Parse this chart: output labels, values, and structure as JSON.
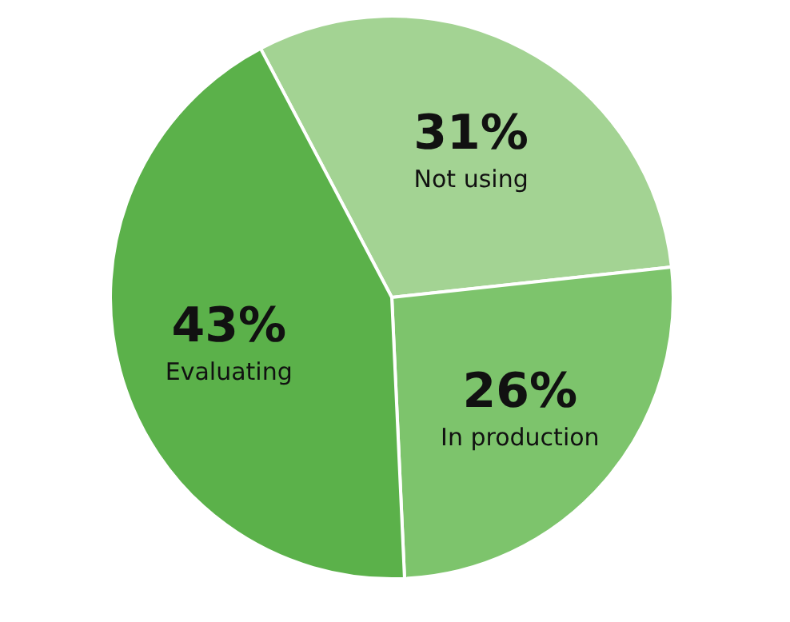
{
  "chart_data": {
    "type": "pie",
    "categories": [
      "Not using",
      "In production",
      "Evaluating"
    ],
    "values": [
      31,
      26,
      43
    ],
    "value_labels": [
      "31%",
      "26%",
      "43%"
    ],
    "colors": [
      "#a3d393",
      "#7dc46c",
      "#5bb14a"
    ],
    "legend": false
  }
}
